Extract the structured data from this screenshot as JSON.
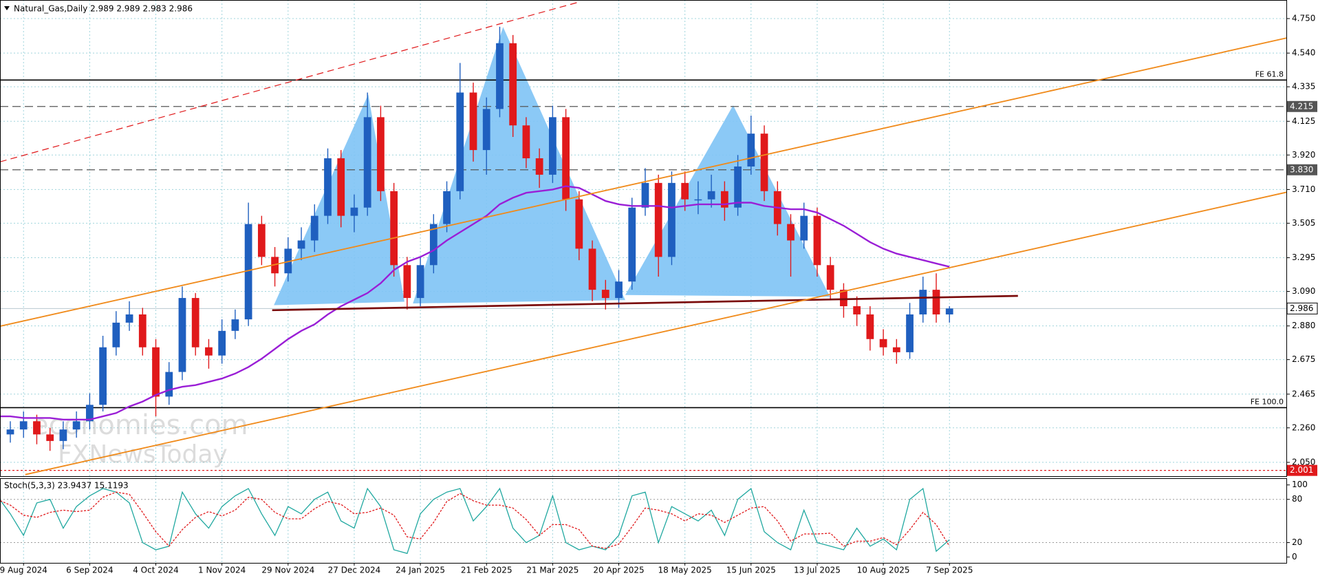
{
  "header": "Natural_Gas,Daily  2.989 2.989 2.983 2.986",
  "watermark": [
    "economies.com",
    "FXNewsToday"
  ],
  "chart_data": [
    {
      "type": "candlestick",
      "categories": [
        null,
        null,
        "9 Aug 2024",
        null,
        null,
        null,
        null,
        "6 Sep 2024",
        null,
        null,
        null,
        null,
        "4 Oct 2024",
        null,
        null,
        null,
        null,
        "1 Nov 2024",
        null,
        null,
        null,
        null,
        "29 Nov 2024",
        null,
        null,
        null,
        null,
        "27 Dec 2024",
        null,
        null,
        null,
        null,
        "24 Jan 2025",
        null,
        null,
        null,
        null,
        "21 Feb 2025",
        null,
        null,
        null,
        null,
        "21 Mar 2025",
        null,
        null,
        null,
        null,
        "20 Apr 2025",
        null,
        null,
        null,
        null,
        "18 May 2025",
        null,
        null,
        null,
        null,
        "15 Jun 2025",
        null,
        null,
        null,
        null,
        "13 Jul 2025",
        null,
        null,
        null,
        null,
        "10 Aug 2025",
        null,
        null,
        null,
        null,
        "7 Sep 2025"
      ],
      "open": [
        2.2,
        2.22,
        2.25,
        2.3,
        2.22,
        2.18,
        2.25,
        2.3,
        2.4,
        2.75,
        2.9,
        2.95,
        2.75,
        2.45,
        2.6,
        3.05,
        2.75,
        2.7,
        2.85,
        2.92,
        3.5,
        3.3,
        3.2,
        3.35,
        3.4,
        3.55,
        3.9,
        3.55,
        3.6,
        4.15,
        3.7,
        3.25,
        3.05,
        3.25,
        3.5,
        3.7,
        4.3,
        3.95,
        4.2,
        4.6,
        4.1,
        3.9,
        3.8,
        4.15,
        3.65,
        3.35,
        3.1,
        3.05,
        3.15,
        3.6,
        3.75,
        3.3,
        3.75,
        3.65,
        3.65,
        3.7,
        3.6,
        3.85,
        4.05,
        3.7,
        3.5,
        3.4,
        3.55,
        3.25,
        3.1,
        3.0,
        2.95,
        2.8,
        2.75,
        2.72,
        2.95,
        3.1,
        2.95
      ],
      "high": [
        2.28,
        2.3,
        2.36,
        2.34,
        2.26,
        2.3,
        2.36,
        2.47,
        2.82,
        2.97,
        3.03,
        2.99,
        2.8,
        2.66,
        3.12,
        3.08,
        2.8,
        2.92,
        2.98,
        3.63,
        3.55,
        3.36,
        3.42,
        3.48,
        3.62,
        3.96,
        3.95,
        3.68,
        4.3,
        4.22,
        3.75,
        3.3,
        3.3,
        3.56,
        3.76,
        4.48,
        4.36,
        4.27,
        4.7,
        4.65,
        4.15,
        3.96,
        4.22,
        4.2,
        3.7,
        3.4,
        3.16,
        3.22,
        3.66,
        3.84,
        3.8,
        3.82,
        3.82,
        3.76,
        3.8,
        3.76,
        3.92,
        4.16,
        4.1,
        3.76,
        3.56,
        3.63,
        3.6,
        3.3,
        3.14,
        3.06,
        3.0,
        2.86,
        2.8,
        3.02,
        3.18,
        3.2,
        3.0
      ],
      "low": [
        2.15,
        2.17,
        2.2,
        2.16,
        2.12,
        2.13,
        2.2,
        2.25,
        2.36,
        2.7,
        2.85,
        2.7,
        2.33,
        2.4,
        2.55,
        2.7,
        2.62,
        2.65,
        2.8,
        2.88,
        3.25,
        3.12,
        3.15,
        3.28,
        3.33,
        3.5,
        3.48,
        3.45,
        3.55,
        3.64,
        3.18,
        2.98,
        3.0,
        3.2,
        3.45,
        3.65,
        3.88,
        3.8,
        4.15,
        4.03,
        3.84,
        3.72,
        3.75,
        3.58,
        3.28,
        3.03,
        2.98,
        2.99,
        3.1,
        3.55,
        3.18,
        3.25,
        3.58,
        3.56,
        3.6,
        3.52,
        3.55,
        3.8,
        3.64,
        3.43,
        3.18,
        3.35,
        3.18,
        3.04,
        2.93,
        2.88,
        2.73,
        2.7,
        2.65,
        2.68,
        2.9,
        2.9,
        2.9
      ],
      "close": [
        2.22,
        2.25,
        2.3,
        2.22,
        2.18,
        2.25,
        2.3,
        2.4,
        2.75,
        2.9,
        2.95,
        2.75,
        2.45,
        2.6,
        3.05,
        2.75,
        2.7,
        2.85,
        2.92,
        3.5,
        3.3,
        3.2,
        3.35,
        3.4,
        3.55,
        3.9,
        3.55,
        3.6,
        4.15,
        3.7,
        3.25,
        3.05,
        3.25,
        3.5,
        3.7,
        4.3,
        3.95,
        4.2,
        4.6,
        4.1,
        3.9,
        3.8,
        4.15,
        3.65,
        3.35,
        3.1,
        3.05,
        3.15,
        3.6,
        3.75,
        3.3,
        3.75,
        3.65,
        3.65,
        3.7,
        3.6,
        3.85,
        4.05,
        3.7,
        3.5,
        3.4,
        3.55,
        3.25,
        3.1,
        3.0,
        2.95,
        2.8,
        2.75,
        2.72,
        2.95,
        3.1,
        2.95,
        2.986
      ],
      "up_color": "#1f5fbf",
      "down_color": "#e0191b",
      "series": [
        {
          "color": "#9a1ed6",
          "values": [
            2.33,
            2.33,
            2.32,
            2.32,
            2.32,
            2.31,
            2.31,
            2.31,
            2.33,
            2.35,
            2.39,
            2.42,
            2.46,
            2.49,
            2.51,
            2.52,
            2.54,
            2.56,
            2.59,
            2.63,
            2.68,
            2.74,
            2.8,
            2.85,
            2.89,
            2.95,
            3.0,
            3.04,
            3.08,
            3.14,
            3.22,
            3.27,
            3.3,
            3.34,
            3.4,
            3.45,
            3.5,
            3.55,
            3.62,
            3.66,
            3.69,
            3.7,
            3.71,
            3.73,
            3.72,
            3.68,
            3.64,
            3.62,
            3.61,
            3.61,
            3.61,
            3.6,
            3.61,
            3.62,
            3.62,
            3.62,
            3.63,
            3.63,
            3.61,
            3.6,
            3.59,
            3.59,
            3.57,
            3.53,
            3.49,
            3.44,
            3.39,
            3.35,
            3.32,
            3.3,
            3.28,
            3.26,
            3.24
          ]
        }
      ],
      "ylim": [
        1.966,
        4.863
      ],
      "yticks": [
        {
          "value": 2.05,
          "label": "2.050"
        },
        {
          "value": 2.26,
          "label": "2.260"
        },
        2.465,
        2.675,
        {
          "value": 2.88,
          "label": "2.880"
        },
        {
          "value": 3.09,
          "label": "3.090"
        },
        3.295,
        3.505,
        {
          "value": 3.71,
          "label": "3.710"
        },
        {
          "value": 3.92,
          "label": "3.920"
        },
        4.125,
        4.335,
        {
          "value": 4.54,
          "label": "4.540"
        },
        {
          "value": 4.75,
          "label": "4.750"
        }
      ],
      "levels": [
        {
          "name": "FE 61.8",
          "value": 4.376,
          "style": "solid",
          "color": "#000000"
        },
        {
          "value": 4.215,
          "style": "dashed",
          "color": "#555555"
        },
        {
          "value": 3.83,
          "label": "3.830",
          "style": "dashed",
          "color": "#555555"
        },
        {
          "name": "FE 100.0",
          "value": 2.383,
          "style": "solid",
          "color": "#000000"
        },
        {
          "value": 2.001,
          "style": "dotted",
          "color": "#e0191b"
        }
      ],
      "last_price": 2.986,
      "grid": true
    },
    {
      "type": "line",
      "title": "Stoch(5,3,3) 23.9437 15.1193",
      "ylim": [
        -8.1,
        109.3
      ],
      "yticks": [
        0,
        20,
        80,
        100
      ],
      "levels": [
        20,
        80
      ],
      "series": [
        {
          "color": "#20a8a0",
          "dash": false,
          "values": [
            85,
            60,
            30,
            75,
            80,
            40,
            70,
            85,
            95,
            90,
            75,
            20,
            10,
            15,
            90,
            60,
            40,
            70,
            85,
            95,
            60,
            30,
            70,
            60,
            80,
            90,
            50,
            40,
            95,
            70,
            10,
            5,
            60,
            80,
            90,
            95,
            50,
            70,
            95,
            40,
            20,
            30,
            85,
            20,
            10,
            15,
            10,
            30,
            85,
            90,
            20,
            70,
            60,
            50,
            65,
            30,
            80,
            95,
            35,
            20,
            10,
            65,
            20,
            15,
            10,
            40,
            15,
            25,
            10,
            80,
            95,
            8,
            23.9437
          ]
        },
        {
          "color": "#e0191b",
          "dash": true,
          "values": [
            80,
            72,
            58,
            55,
            62,
            65,
            63,
            65,
            83,
            90,
            87,
            62,
            35,
            15,
            38,
            55,
            63,
            57,
            65,
            83,
            80,
            62,
            53,
            53,
            67,
            77,
            73,
            60,
            62,
            68,
            58,
            28,
            25,
            48,
            77,
            88,
            78,
            72,
            72,
            68,
            52,
            30,
            45,
            45,
            38,
            15,
            12,
            18,
            42,
            68,
            65,
            60,
            50,
            60,
            58,
            48,
            58,
            68,
            70,
            50,
            22,
            32,
            32,
            33,
            15,
            22,
            22,
            27,
            17,
            38,
            62,
            45,
            15.1193
          ]
        }
      ]
    }
  ]
}
